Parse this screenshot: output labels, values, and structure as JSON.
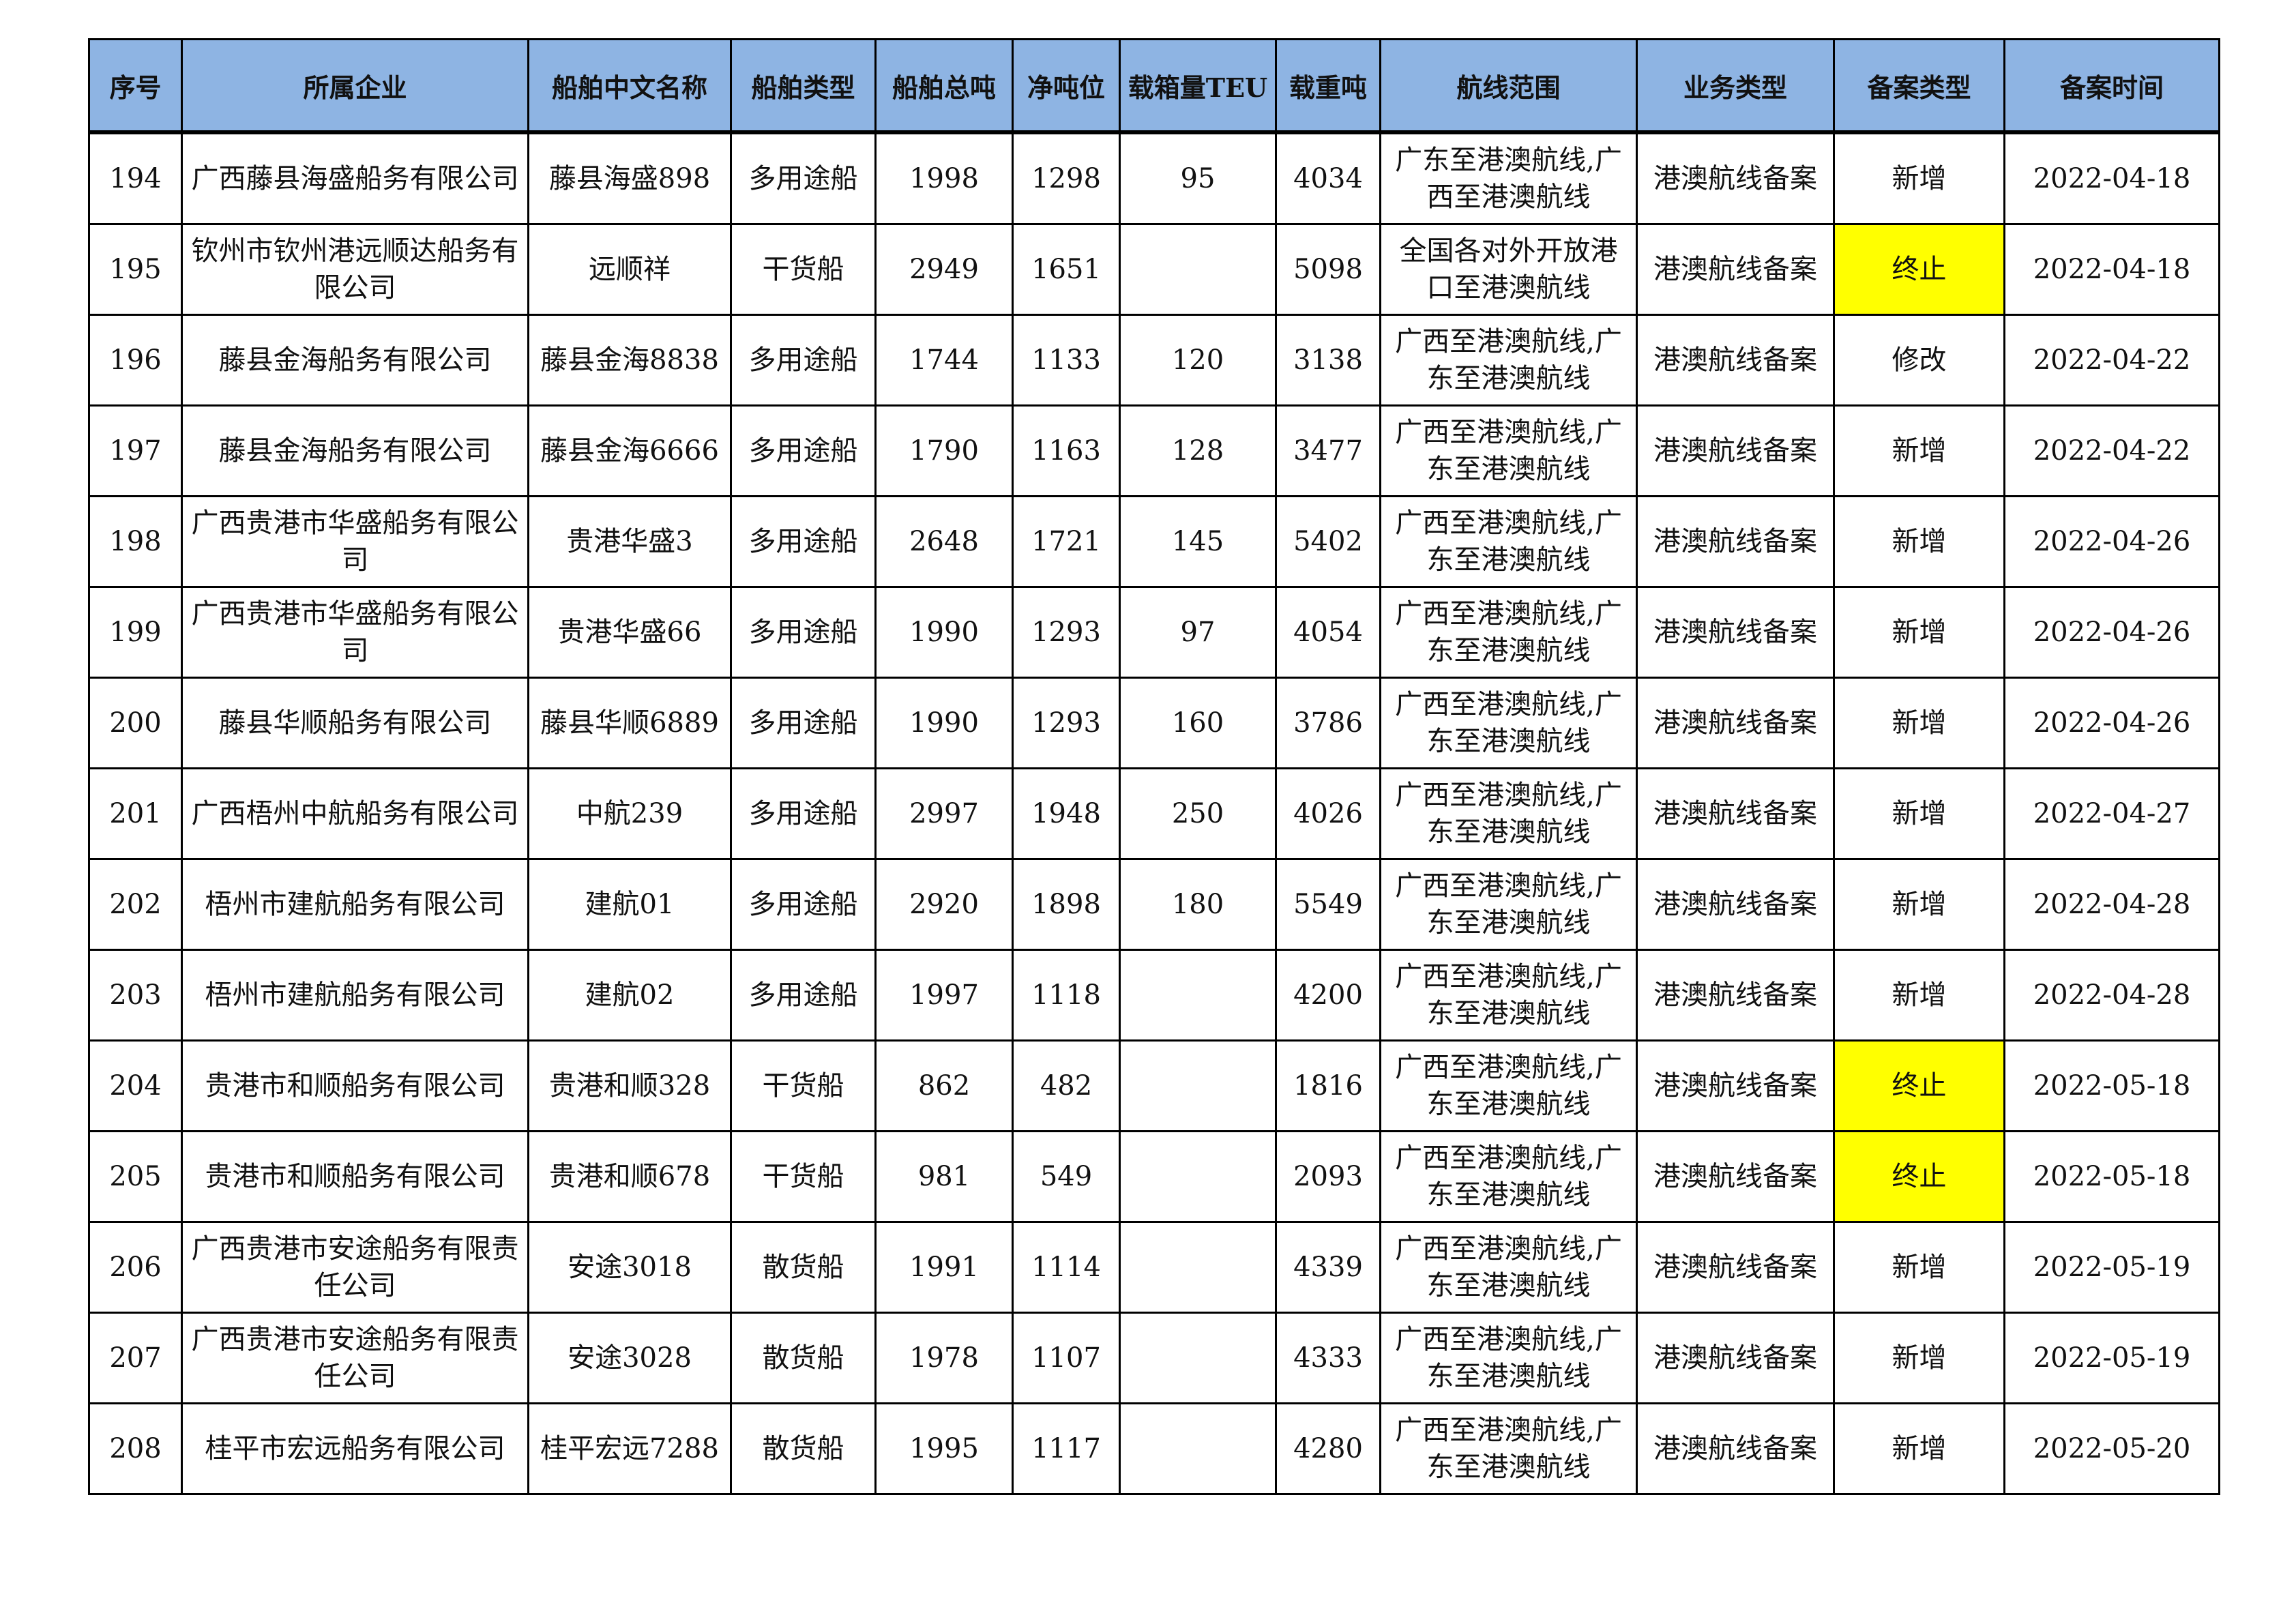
{
  "columns": [
    "序号",
    "所属企业",
    "船舶中文名称",
    "船舶类型",
    "船舶总吨",
    "净吨位",
    "载箱量TEU",
    "载重吨",
    "航线范围",
    "业务类型",
    "备案类型",
    "备案时间"
  ],
  "highlight_color": "#ffff00",
  "header_color": "#8eb4e3",
  "rows": [
    [
      "194",
      "广西藤县海盛船务有限公司",
      "藤县海盛898",
      "多用途船",
      "1998",
      "1298",
      "95",
      "4034",
      "广东至港澳航线,广西至港澳航线",
      "港澳航线备案",
      "新增",
      "2022-04-18"
    ],
    [
      "195",
      "钦州市钦州港远顺达船务有限公司",
      "远顺祥",
      "干货船",
      "2949",
      "1651",
      "",
      "5098",
      "全国各对外开放港口至港澳航线",
      "港澳航线备案",
      "终止",
      "2022-04-18"
    ],
    [
      "196",
      "藤县金海船务有限公司",
      "藤县金海8838",
      "多用途船",
      "1744",
      "1133",
      "120",
      "3138",
      "广西至港澳航线,广东至港澳航线",
      "港澳航线备案",
      "修改",
      "2022-04-22"
    ],
    [
      "197",
      "藤县金海船务有限公司",
      "藤县金海6666",
      "多用途船",
      "1790",
      "1163",
      "128",
      "3477",
      "广西至港澳航线,广东至港澳航线",
      "港澳航线备案",
      "新增",
      "2022-04-22"
    ],
    [
      "198",
      "广西贵港市华盛船务有限公司",
      "贵港华盛3",
      "多用途船",
      "2648",
      "1721",
      "145",
      "5402",
      "广西至港澳航线,广东至港澳航线",
      "港澳航线备案",
      "新增",
      "2022-04-26"
    ],
    [
      "199",
      "广西贵港市华盛船务有限公司",
      "贵港华盛66",
      "多用途船",
      "1990",
      "1293",
      "97",
      "4054",
      "广西至港澳航线,广东至港澳航线",
      "港澳航线备案",
      "新增",
      "2022-04-26"
    ],
    [
      "200",
      "藤县华顺船务有限公司",
      "藤县华顺6889",
      "多用途船",
      "1990",
      "1293",
      "160",
      "3786",
      "广西至港澳航线,广东至港澳航线",
      "港澳航线备案",
      "新增",
      "2022-04-26"
    ],
    [
      "201",
      "广西梧州中航船务有限公司",
      "中航239",
      "多用途船",
      "2997",
      "1948",
      "250",
      "4026",
      "广西至港澳航线,广东至港澳航线",
      "港澳航线备案",
      "新增",
      "2022-04-27"
    ],
    [
      "202",
      "梧州市建航船务有限公司",
      "建航01",
      "多用途船",
      "2920",
      "1898",
      "180",
      "5549",
      "广西至港澳航线,广东至港澳航线",
      "港澳航线备案",
      "新增",
      "2022-04-28"
    ],
    [
      "203",
      "梧州市建航船务有限公司",
      "建航02",
      "多用途船",
      "1997",
      "1118",
      "",
      "4200",
      "广西至港澳航线,广东至港澳航线",
      "港澳航线备案",
      "新增",
      "2022-04-28"
    ],
    [
      "204",
      "贵港市和顺船务有限公司",
      "贵港和顺328",
      "干货船",
      "862",
      "482",
      "",
      "1816",
      "广西至港澳航线,广东至港澳航线",
      "港澳航线备案",
      "终止",
      "2022-05-18"
    ],
    [
      "205",
      "贵港市和顺船务有限公司",
      "贵港和顺678",
      "干货船",
      "981",
      "549",
      "",
      "2093",
      "广西至港澳航线,广东至港澳航线",
      "港澳航线备案",
      "终止",
      "2022-05-18"
    ],
    [
      "206",
      "广西贵港市安途船务有限责任公司",
      "安途3018",
      "散货船",
      "1991",
      "1114",
      "",
      "4339",
      "广西至港澳航线,广东至港澳航线",
      "港澳航线备案",
      "新增",
      "2022-05-19"
    ],
    [
      "207",
      "广西贵港市安途船务有限责任公司",
      "安途3028",
      "散货船",
      "1978",
      "1107",
      "",
      "4333",
      "广西至港澳航线,广东至港澳航线",
      "港澳航线备案",
      "新增",
      "2022-05-19"
    ],
    [
      "208",
      "桂平市宏远船务有限公司",
      "桂平宏远7288",
      "散货船",
      "1995",
      "1117",
      "",
      "4280",
      "广西至港澳航线,广东至港澳航线",
      "港澳航线备案",
      "新增",
      "2022-05-20"
    ]
  ]
}
